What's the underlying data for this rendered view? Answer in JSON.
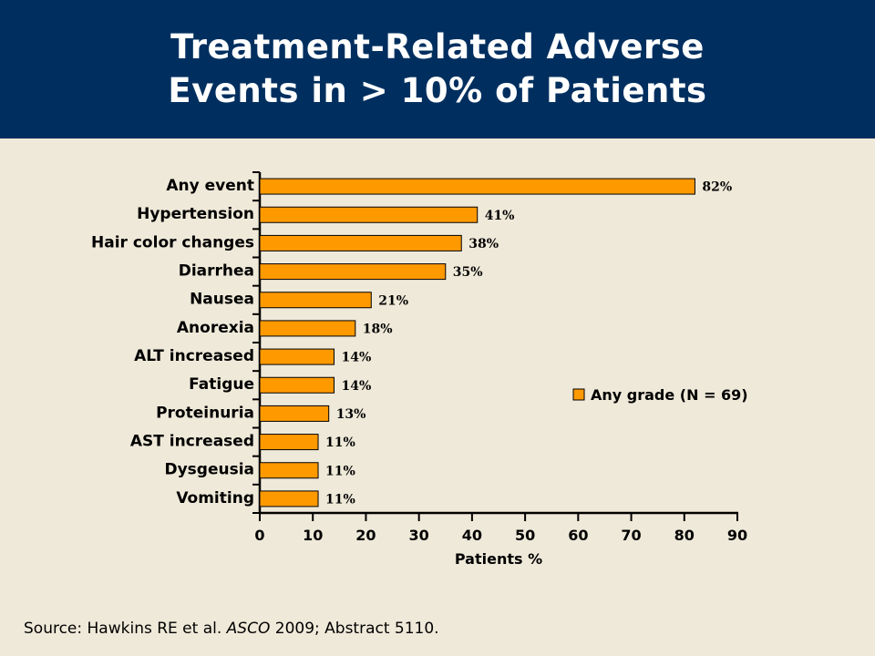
{
  "header": {
    "title_line1": "Treatment-Related Adverse",
    "title_line2": "Events in > 10% of Patients"
  },
  "colors": {
    "header_bg": "#002f5f",
    "background": "#efe9d9",
    "bar_fill": "#ff9900",
    "bar_stroke": "#000000"
  },
  "chart_data": {
    "type": "bar",
    "orientation": "horizontal",
    "categories": [
      "Any event",
      "Hypertension",
      "Hair color changes",
      "Diarrhea",
      "Nausea",
      "Anorexia",
      "ALT increased",
      "Fatigue",
      "Proteinuria",
      "AST increased",
      "Dysgeusia",
      "Vomiting"
    ],
    "series": [
      {
        "name": "Any grade (N = 69)",
        "values": [
          82,
          41,
          38,
          35,
          21,
          18,
          14,
          14,
          13,
          11,
          11,
          11
        ]
      }
    ],
    "data_labels": [
      "82%",
      "41%",
      "38%",
      "35%",
      "21%",
      "18%",
      "14%",
      "14%",
      "13%",
      "11%",
      "11%",
      "11%"
    ],
    "xlabel": "Patients %",
    "ylabel": "",
    "xlim": [
      0,
      90
    ],
    "xticks": [
      "0",
      "10",
      "20",
      "30",
      "40",
      "50",
      "60",
      "70",
      "80",
      "90"
    ],
    "grid": false,
    "legend": {
      "label": "Any grade (N = 69)",
      "placement": "right-middle"
    }
  },
  "footer": {
    "source_prefix": "Source: Hawkins RE et al. ",
    "source_journal": "ASCO",
    "source_suffix": " 2009; Abstract 5110."
  }
}
